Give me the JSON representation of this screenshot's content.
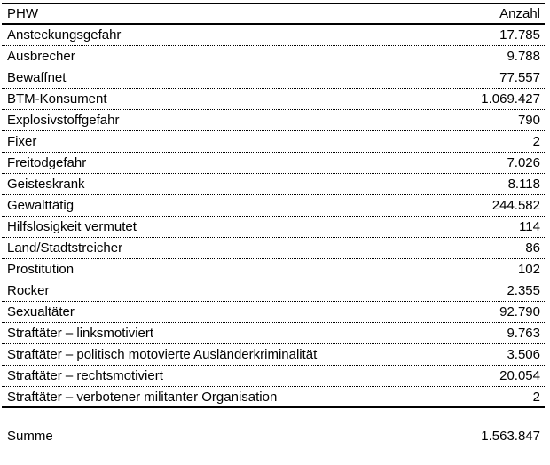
{
  "colors": {
    "background": "#ffffff",
    "text": "#000000",
    "rule": "#000000"
  },
  "table": {
    "header": {
      "label": "PHW",
      "value": "Anzahl"
    },
    "rows": [
      {
        "label": "Ansteckungsgefahr",
        "value": "17.785"
      },
      {
        "label": "Ausbrecher",
        "value": "9.788"
      },
      {
        "label": "Bewaffnet",
        "value": "77.557"
      },
      {
        "label": "BTM-Konsument",
        "value": "1.069.427"
      },
      {
        "label": "Explosivstoffgefahr",
        "value": "790"
      },
      {
        "label": "Fixer",
        "value": "2"
      },
      {
        "label": "Freitodgefahr",
        "value": "7.026"
      },
      {
        "label": "Geisteskrank",
        "value": "8.118"
      },
      {
        "label": "Gewalttätig",
        "value": "244.582"
      },
      {
        "label": "Hilfslosigkeit vermutet",
        "value": "114"
      },
      {
        "label": "Land/Stadtstreicher",
        "value": "86"
      },
      {
        "label": "Prostitution",
        "value": "102"
      },
      {
        "label": "Rocker",
        "value": "2.355"
      },
      {
        "label": "Sexualtäter",
        "value": "92.790"
      },
      {
        "label": "Straftäter – linksmotiviert",
        "value": "9.763"
      },
      {
        "label": "Straftäter – politisch motovierte Ausländerkriminalität",
        "value": "3.506"
      },
      {
        "label": "Straftäter – rechtsmotiviert",
        "value": "20.054"
      },
      {
        "label": "Straftäter – verbotener militanter Organisation",
        "value": "2"
      }
    ],
    "summary": {
      "label": "Summe",
      "value": "1.563.847"
    }
  },
  "chart_data": {
    "type": "table",
    "columns": [
      "PHW",
      "Anzahl"
    ],
    "rows": [
      [
        "Ansteckungsgefahr",
        17785
      ],
      [
        "Ausbrecher",
        9788
      ],
      [
        "Bewaffnet",
        77557
      ],
      [
        "BTM-Konsument",
        1069427
      ],
      [
        "Explosivstoffgefahr",
        790
      ],
      [
        "Fixer",
        2
      ],
      [
        "Freitodgefahr",
        7026
      ],
      [
        "Geisteskrank",
        8118
      ],
      [
        "Gewalttätig",
        244582
      ],
      [
        "Hilfslosigkeit vermutet",
        114
      ],
      [
        "Land/Stadtstreicher",
        86
      ],
      [
        "Prostitution",
        102
      ],
      [
        "Rocker",
        2355
      ],
      [
        "Sexualtäter",
        92790
      ],
      [
        "Straftäter – linksmotiviert",
        9763
      ],
      [
        "Straftäter – politisch motovierte Ausländerkriminalität",
        3506
      ],
      [
        "Straftäter – rechtsmotiviert",
        20054
      ],
      [
        "Straftäter – verbotener militanter Organisation",
        2
      ]
    ],
    "summary_row": [
      "Summe",
      1563847
    ],
    "layout": {
      "value_alignment": "right",
      "row_separator": "dotted",
      "header_rule": "solid",
      "grid": "horizontal-only"
    }
  }
}
